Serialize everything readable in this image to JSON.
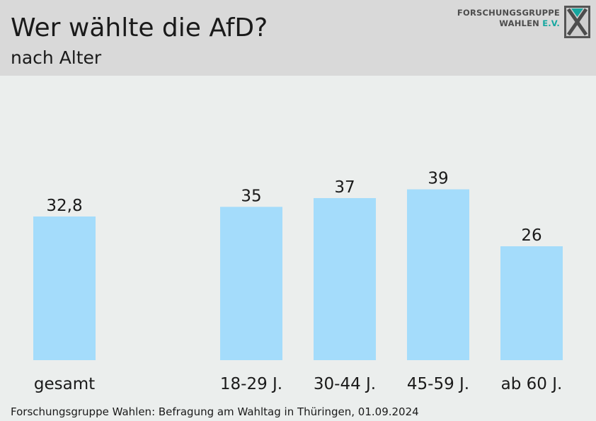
{
  "header": {
    "title": "Wer wählte die AfD?",
    "subtitle": "nach Alter",
    "logo_line1": "FORSCHUNGSGRUPPE",
    "logo_line2a": "WAHLEN",
    "logo_line2b": "E.V."
  },
  "source": "Forschungsgruppe Wahlen: Befragung am Wahltag in Thüringen, 01.09.2024",
  "colors": {
    "bar": "#a4dcfb",
    "header_bg": "#d9d9d9",
    "plot_bg": "#ebeeed",
    "logo_accent": "#16a7a0"
  },
  "chart_data": {
    "type": "bar",
    "title": "Wer wählte die AfD?",
    "subtitle": "nach Alter",
    "categories": [
      "gesamt",
      "18-29 J.",
      "30-44 J.",
      "45-59 J.",
      "ab 60 J."
    ],
    "values": [
      32.8,
      35,
      37,
      39,
      26
    ],
    "value_labels": [
      "32,8",
      "35",
      "37",
      "39",
      "26"
    ],
    "ylim": [
      0,
      50
    ],
    "grid": false,
    "legend": "none"
  }
}
